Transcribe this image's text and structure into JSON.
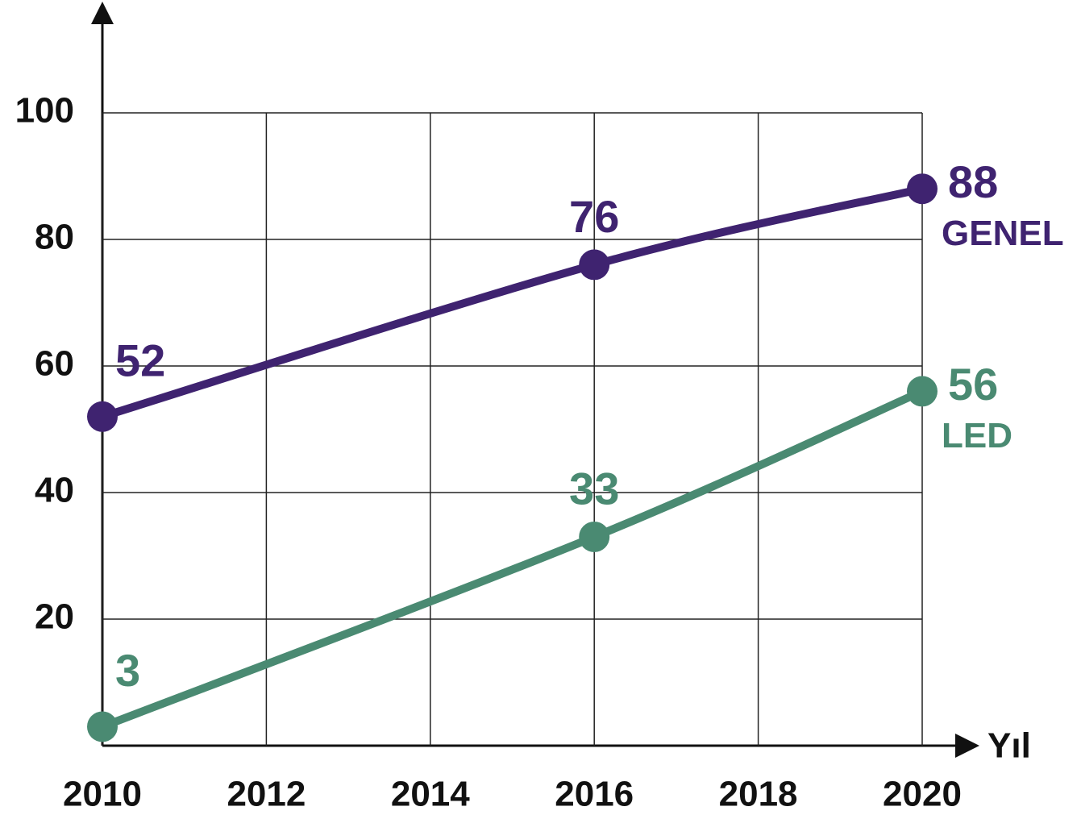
{
  "chart_data": {
    "type": "line",
    "x_label": "Yıl",
    "x": [
      2010,
      2016,
      2020
    ],
    "series": [
      {
        "name": "GENEL",
        "color": "#3f2370",
        "values": [
          52,
          76,
          88
        ]
      },
      {
        "name": "LED",
        "color": "#4a8a72",
        "values": [
          3,
          33,
          56
        ]
      }
    ],
    "xlim": [
      2010,
      2020
    ],
    "xticks": [
      2010,
      2012,
      2014,
      2016,
      2018,
      2020
    ],
    "ylim": [
      0,
      100
    ],
    "yticks": [
      20,
      40,
      60,
      80,
      100
    ],
    "grid": true
  }
}
